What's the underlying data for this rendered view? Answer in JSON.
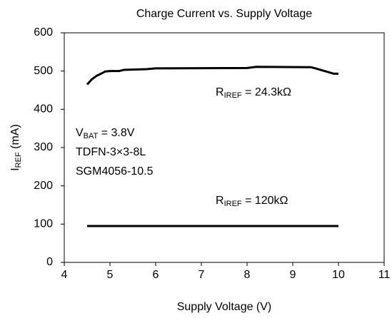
{
  "chart_data": {
    "type": "line",
    "title": "Charge Current  vs. Supply Voltage",
    "xlabel": "Supply Voltage (V)",
    "ylabel": {
      "main": "I",
      "sub": "REF",
      "rest": " (mA)"
    },
    "xlim": [
      4,
      11
    ],
    "xticks": [
      4,
      5,
      6,
      7,
      8,
      9,
      10,
      11
    ],
    "ylim": [
      0,
      600
    ],
    "yticks": [
      0,
      100,
      200,
      300,
      400,
      500,
      600
    ],
    "grid": false,
    "series": [
      {
        "color": "#000000",
        "x": [
          4.5,
          4.6,
          4.7,
          4.8,
          4.9,
          5.0,
          5.2,
          5.3,
          5.8,
          6.0,
          8.0,
          8.2,
          9.4,
          9.5,
          9.7,
          9.9,
          10.0
        ],
        "values": [
          465,
          478,
          487,
          493,
          499,
          500,
          500,
          503,
          505,
          507,
          508,
          511,
          510,
          507,
          500,
          493,
          493
        ]
      },
      {
        "color": "#000000",
        "x": [
          4.5,
          10.0
        ],
        "values": [
          95,
          95
        ]
      }
    ],
    "annotations": [
      {
        "main": "R",
        "sub": "IREF",
        "rest": " = 24.3kΩ"
      },
      {
        "main": "V",
        "sub": "BAT",
        "rest": " = 3.8V"
      },
      {
        "text": "TDFN-3×3-8L"
      },
      {
        "text": "SGM4056-10.5"
      },
      {
        "main": "R",
        "sub": "IREF",
        "rest": " = 120kΩ"
      }
    ]
  }
}
